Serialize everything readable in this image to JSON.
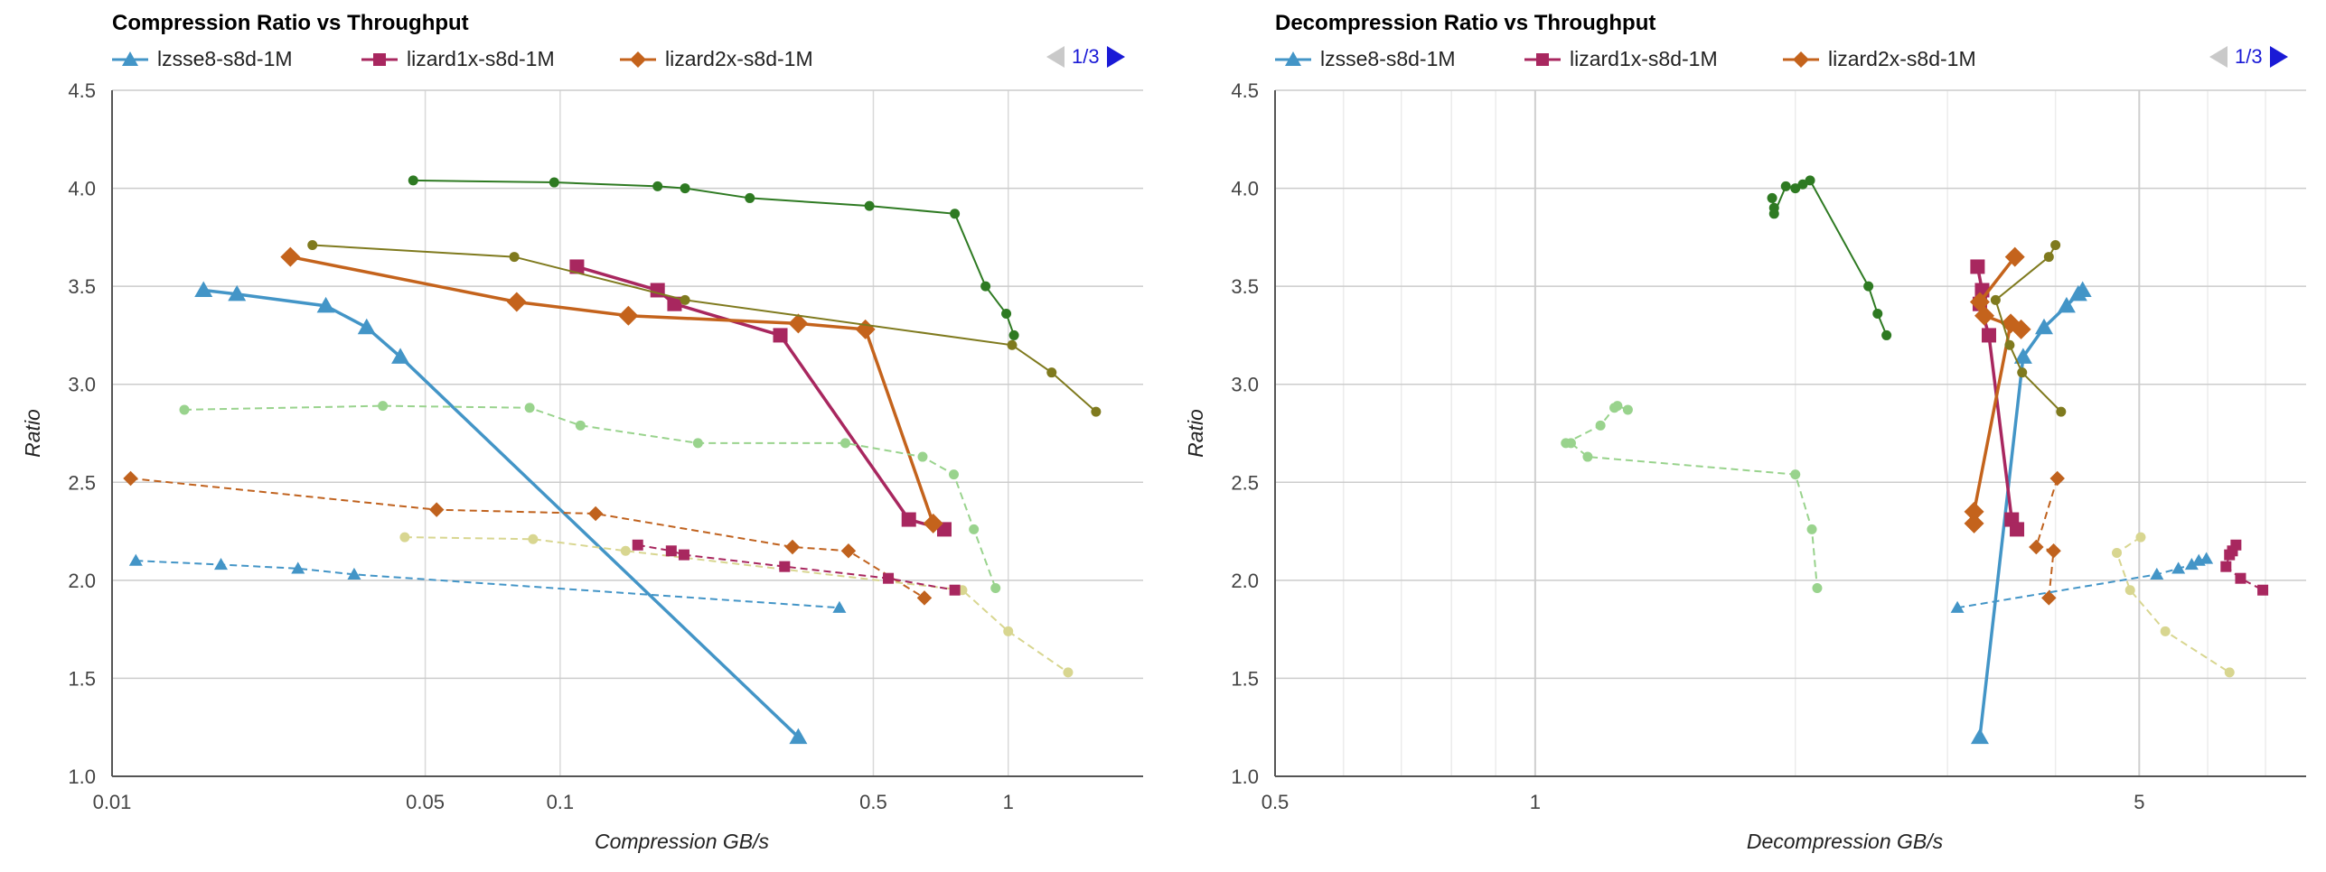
{
  "legend": [
    {
      "name": "lzsse8-s8d-1M",
      "color": "#4395c7",
      "marker": "triangle"
    },
    {
      "name": "lizard1x-s8d-1M",
      "color": "#a8275f",
      "marker": "square"
    },
    {
      "name": "lizard2x-s8d-1M",
      "color": "#c4631c",
      "marker": "diamond"
    }
  ],
  "pager": {
    "text": "1/3"
  },
  "chart_data": [
    {
      "type": "line",
      "title": "Compression Ratio vs Throughput",
      "xlabel": "Compression GB/s",
      "ylabel": "Ratio",
      "xscale": "log",
      "xlim": [
        0.01,
        2.0
      ],
      "ylim": [
        1.0,
        4.5
      ],
      "xticks": [
        0.01,
        0.05,
        0.1,
        0.5,
        1
      ],
      "xtick_labels": [
        "0.01",
        "0.05",
        "0.1",
        "0.5",
        "1"
      ],
      "yticks": [
        1.0,
        1.5,
        2.0,
        2.5,
        3.0,
        3.5,
        4.0,
        4.5
      ],
      "ytick_labels": [
        "1.0",
        "1.5",
        "2.0",
        "2.5",
        "3.0",
        "3.5",
        "4.0",
        "4.5"
      ],
      "grid": "horizontal",
      "legend_position": "top-left",
      "series": [
        {
          "name": "lzsse8-s8d-1M",
          "color": "#4395c7",
          "marker": "triangle",
          "style": "solid",
          "points": [
            [
              0.016,
              3.48
            ],
            [
              0.019,
              3.46
            ],
            [
              0.03,
              3.4
            ],
            [
              0.037,
              3.29
            ],
            [
              0.044,
              3.14
            ],
            [
              0.34,
              1.2
            ]
          ]
        },
        {
          "name": "lizard1x-s8d-1M",
          "color": "#a8275f",
          "marker": "square",
          "style": "solid",
          "points": [
            [
              0.109,
              3.6
            ],
            [
              0.165,
              3.48
            ],
            [
              0.18,
              3.41
            ],
            [
              0.31,
              3.25
            ],
            [
              0.6,
              2.31
            ],
            [
              0.72,
              2.26
            ]
          ]
        },
        {
          "name": "lizard2x-s8d-1M",
          "color": "#c4631c",
          "marker": "diamond",
          "style": "solid",
          "points": [
            [
              0.025,
              3.65
            ],
            [
              0.08,
              3.42
            ],
            [
              0.142,
              3.35
            ],
            [
              0.34,
              3.31
            ],
            [
              0.48,
              3.28
            ],
            [
              0.68,
              2.29
            ]
          ]
        },
        {
          "color": "#2e7a22",
          "marker": "dot",
          "style": "solid",
          "points": [
            [
              0.047,
              4.04
            ],
            [
              0.097,
              4.03
            ],
            [
              0.165,
              4.01
            ],
            [
              0.19,
              4.0
            ],
            [
              0.265,
              3.95
            ],
            [
              0.49,
              3.91
            ],
            [
              0.76,
              3.87
            ],
            [
              0.89,
              3.5
            ],
            [
              0.99,
              3.36
            ],
            [
              1.03,
              3.25
            ]
          ]
        },
        {
          "color": "#7f7a1e",
          "marker": "dot",
          "style": "solid",
          "points": [
            [
              0.028,
              3.71
            ],
            [
              0.079,
              3.65
            ],
            [
              0.19,
              3.43
            ],
            [
              1.02,
              3.2
            ],
            [
              1.25,
              3.06
            ],
            [
              1.57,
              2.86
            ]
          ]
        },
        {
          "color": "#99d38d",
          "marker": "dot",
          "style": "dashed",
          "points": [
            [
              0.0145,
              2.87
            ],
            [
              0.0402,
              2.89
            ],
            [
              0.0855,
              2.88
            ],
            [
              0.111,
              2.79
            ],
            [
              0.203,
              2.7
            ],
            [
              0.433,
              2.7
            ],
            [
              0.644,
              2.63
            ],
            [
              0.756,
              2.54
            ],
            [
              0.838,
              2.26
            ],
            [
              0.937,
              1.96
            ]
          ]
        },
        {
          "color": "#c0621e",
          "marker": "diamond",
          "style": "dashed",
          "points": [
            [
              0.011,
              2.52
            ],
            [
              0.053,
              2.36
            ],
            [
              0.12,
              2.34
            ],
            [
              0.33,
              2.17
            ],
            [
              0.44,
              2.15
            ],
            [
              0.65,
              1.91
            ]
          ]
        },
        {
          "color": "#d8d690",
          "marker": "dot",
          "style": "dashed",
          "points": [
            [
              0.045,
              2.22
            ],
            [
              0.087,
              2.21
            ],
            [
              0.14,
              2.15
            ],
            [
              0.79,
              1.95
            ],
            [
              1.0,
              1.74
            ],
            [
              1.36,
              1.53
            ]
          ]
        },
        {
          "color": "#a8275f",
          "marker": "square",
          "style": "dashed",
          "points": [
            [
              0.149,
              2.18
            ],
            [
              0.177,
              2.15
            ],
            [
              0.189,
              2.13
            ],
            [
              0.317,
              2.07
            ],
            [
              0.54,
              2.01
            ],
            [
              0.76,
              1.95
            ]
          ]
        },
        {
          "color": "#4395c7",
          "marker": "triangle",
          "style": "dashed",
          "points": [
            [
              0.0113,
              2.1
            ],
            [
              0.0175,
              2.08
            ],
            [
              0.026,
              2.06
            ],
            [
              0.0347,
              2.03
            ],
            [
              0.42,
              1.86
            ]
          ]
        }
      ]
    },
    {
      "type": "line",
      "title": "Decompression Ratio vs Throughput",
      "xlabel": "Decompression GB/s",
      "ylabel": "Ratio",
      "xscale": "log",
      "xlim": [
        0.5,
        7.8
      ],
      "ylim": [
        1.0,
        4.5
      ],
      "xticks": [
        0.5,
        1,
        5
      ],
      "xtick_labels": [
        "0.5",
        "1",
        "5"
      ],
      "yticks": [
        1.0,
        1.5,
        2.0,
        2.5,
        3.0,
        3.5,
        4.0,
        4.5
      ],
      "ytick_labels": [
        "1.0",
        "1.5",
        "2.0",
        "2.5",
        "3.0",
        "3.5",
        "4.0",
        "4.5"
      ],
      "grid": "log-major-minor",
      "legend_position": "top-left",
      "series": [
        {
          "name": "lzsse8-s8d-1M",
          "color": "#4395c7",
          "marker": "triangle",
          "style": "solid",
          "points": [
            [
              3.27,
              1.2
            ],
            [
              3.67,
              3.14
            ],
            [
              3.88,
              3.29
            ],
            [
              4.12,
              3.4
            ],
            [
              4.25,
              3.46
            ],
            [
              4.3,
              3.48
            ]
          ]
        },
        {
          "name": "lizard1x-s8d-1M",
          "color": "#a8275f",
          "marker": "square",
          "style": "solid",
          "points": [
            [
              3.25,
              3.6
            ],
            [
              3.29,
              3.48
            ],
            [
              3.27,
              3.41
            ],
            [
              3.35,
              3.25
            ],
            [
              3.56,
              2.31
            ],
            [
              3.61,
              2.26
            ]
          ]
        },
        {
          "name": "lizard2x-s8d-1M",
          "color": "#c4631c",
          "marker": "diamond",
          "style": "solid",
          "points": [
            [
              3.22,
              2.29
            ],
            [
              3.22,
              2.35
            ],
            [
              3.55,
              3.31
            ],
            [
              3.65,
              3.28
            ],
            [
              3.31,
              3.35
            ],
            [
              3.27,
              3.42
            ],
            [
              3.59,
              3.65
            ]
          ]
        },
        {
          "color": "#2e7a22",
          "marker": "dot",
          "style": "solid",
          "points": [
            [
              1.88,
              3.95
            ],
            [
              1.89,
              3.9
            ],
            [
              1.89,
              3.87
            ],
            [
              1.95,
              4.01
            ],
            [
              2.0,
              4.0
            ],
            [
              2.04,
              4.02
            ],
            [
              2.08,
              4.04
            ],
            [
              2.43,
              3.5
            ],
            [
              2.49,
              3.36
            ],
            [
              2.55,
              3.25
            ]
          ]
        },
        {
          "color": "#7f7a1e",
          "marker": "dot",
          "style": "solid",
          "points": [
            [
              4.0,
              3.71
            ],
            [
              3.93,
              3.65
            ],
            [
              3.41,
              3.43
            ],
            [
              3.54,
              3.2
            ],
            [
              3.66,
              3.06
            ],
            [
              4.06,
              2.86
            ]
          ]
        },
        {
          "color": "#99d38d",
          "marker": "dot",
          "style": "dashed",
          "points": [
            [
              1.28,
              2.87
            ],
            [
              1.245,
              2.89
            ],
            [
              1.235,
              2.88
            ],
            [
              1.19,
              2.79
            ],
            [
              1.085,
              2.7
            ],
            [
              1.1,
              2.7
            ],
            [
              1.15,
              2.63
            ],
            [
              2.0,
              2.54
            ],
            [
              2.09,
              2.26
            ],
            [
              2.12,
              1.96
            ]
          ]
        },
        {
          "color": "#c0621e",
          "marker": "diamond",
          "style": "dashed",
          "points": [
            [
              4.02,
              2.52
            ],
            [
              3.8,
              2.17
            ],
            [
              3.98,
              2.15
            ],
            [
              3.93,
              1.91
            ]
          ]
        },
        {
          "color": "#d8d690",
          "marker": "dot",
          "style": "dashed",
          "points": [
            [
              5.02,
              2.22
            ],
            [
              4.71,
              2.14
            ],
            [
              4.88,
              1.95
            ],
            [
              5.36,
              1.74
            ],
            [
              6.36,
              1.53
            ]
          ]
        },
        {
          "color": "#a8275f",
          "marker": "square",
          "style": "dashed",
          "points": [
            [
              6.47,
              2.18
            ],
            [
              6.41,
              2.15
            ],
            [
              6.36,
              2.13
            ],
            [
              6.3,
              2.07
            ],
            [
              6.55,
              2.01
            ],
            [
              6.95,
              1.95
            ]
          ]
        },
        {
          "color": "#4395c7",
          "marker": "triangle",
          "style": "dashed",
          "points": [
            [
              3.08,
              1.86
            ],
            [
              5.24,
              2.03
            ],
            [
              5.55,
              2.06
            ],
            [
              5.75,
              2.08
            ],
            [
              5.86,
              2.1
            ],
            [
              5.98,
              2.11
            ]
          ]
        }
      ]
    }
  ]
}
